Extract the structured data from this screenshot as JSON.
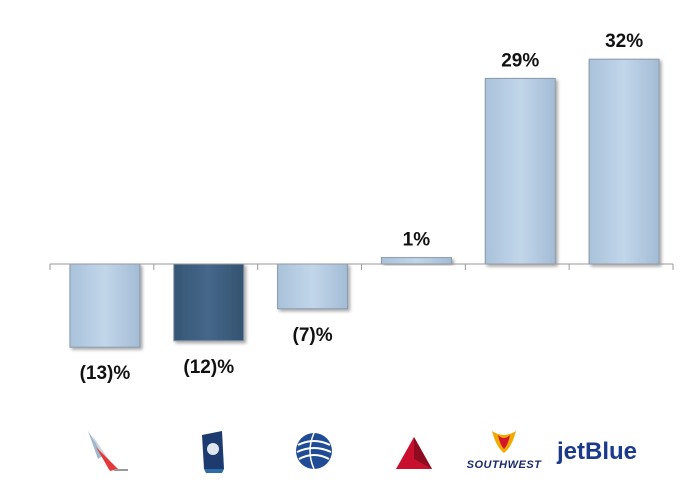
{
  "chart_data": {
    "type": "bar",
    "categories": [
      "American Airlines",
      "Alaska Airlines",
      "United",
      "Delta",
      "Southwest",
      "JetBlue"
    ],
    "values": [
      -13,
      -12,
      -7,
      1,
      29,
      32
    ],
    "data_labels": [
      "(13)%",
      "(12)%",
      "(7)%",
      "1%",
      "29%",
      "32%"
    ],
    "highlight_index": 1,
    "colors": {
      "bar": "#b8cfe4",
      "highlight": "#3f607f",
      "bar_stroke": "#8a98a8",
      "axis": "#9a9a9a"
    },
    "ylim": [
      -18,
      38
    ],
    "grid": false,
    "legend": "none"
  },
  "logos": [
    {
      "icon": "american-airlines-logo-icon"
    },
    {
      "icon": "alaska-airlines-logo-icon"
    },
    {
      "icon": "united-airlines-logo-icon"
    },
    {
      "icon": "delta-airlines-logo-icon"
    },
    {
      "icon": "southwest-airlines-logo-icon",
      "text": "SOUTHWEST"
    },
    {
      "icon": "jetblue-logo-icon",
      "text": "jetBlue"
    }
  ]
}
